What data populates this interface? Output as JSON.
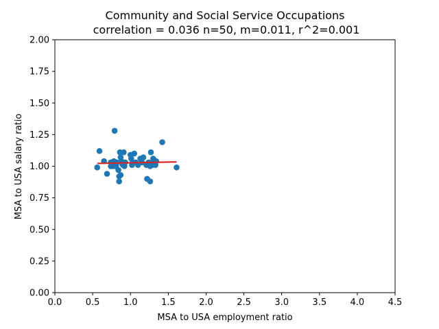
{
  "chart_data": {
    "type": "scatter",
    "title": "Community and Social Service Occupations",
    "subtitle": "correlation = 0.036 n=50, m=0.011, r^2=0.001",
    "xlabel": "MSA to USA employment ratio",
    "ylabel": "MSA to USA salary ratio",
    "xlim": [
      0.0,
      4.5
    ],
    "ylim": [
      0.0,
      2.0
    ],
    "x_ticks": [
      "0.0",
      "0.5",
      "1.0",
      "1.5",
      "2.0",
      "2.5",
      "3.0",
      "3.5",
      "4.0",
      "4.5"
    ],
    "y_ticks": [
      "0.00",
      "0.25",
      "0.50",
      "0.75",
      "1.00",
      "1.25",
      "1.50",
      "1.75",
      "2.00"
    ],
    "grid": false,
    "legend": "none",
    "colors": {
      "points": "#1f77b4",
      "fit_line": "#d62728"
    },
    "series": [
      {
        "points": [
          [
            0.56,
            0.99
          ],
          [
            0.59,
            1.12
          ],
          [
            0.65,
            1.04
          ],
          [
            0.69,
            0.94
          ],
          [
            0.74,
            1.03
          ],
          [
            0.74,
            1.0
          ],
          [
            0.76,
            1.02
          ],
          [
            0.77,
            1.0
          ],
          [
            0.78,
            1.04
          ],
          [
            0.79,
            1.28
          ],
          [
            0.8,
            1.03
          ],
          [
            0.81,
            1.0
          ],
          [
            0.82,
            1.03
          ],
          [
            0.84,
            0.97
          ],
          [
            0.85,
            0.88
          ],
          [
            0.85,
            0.92
          ],
          [
            0.86,
            1.11
          ],
          [
            0.87,
            1.07
          ],
          [
            0.87,
            0.93
          ],
          [
            0.88,
            1.04
          ],
          [
            0.89,
            1.02
          ],
          [
            0.9,
            1.01
          ],
          [
            0.91,
            1.11
          ],
          [
            0.92,
            1.0
          ],
          [
            0.93,
            1.03
          ],
          [
            1.0,
            1.09
          ],
          [
            1.01,
            1.06
          ],
          [
            1.02,
            1.01
          ],
          [
            1.03,
            1.03
          ],
          [
            1.05,
            1.1
          ],
          [
            1.07,
            1.03
          ],
          [
            1.1,
            1.01
          ],
          [
            1.13,
            1.06
          ],
          [
            1.15,
            1.03
          ],
          [
            1.17,
            1.07
          ],
          [
            1.21,
            1.01
          ],
          [
            1.22,
            0.9
          ],
          [
            1.24,
            1.03
          ],
          [
            1.26,
            1.0
          ],
          [
            1.26,
            0.88
          ],
          [
            1.27,
            1.11
          ],
          [
            1.28,
            1.02
          ],
          [
            1.29,
            1.01
          ],
          [
            1.3,
            1.06
          ],
          [
            1.31,
            1.03
          ],
          [
            1.32,
            1.02
          ],
          [
            1.33,
            1.01
          ],
          [
            1.34,
            1.04
          ],
          [
            1.42,
            1.19
          ],
          [
            1.61,
            0.99
          ]
        ]
      }
    ],
    "fit_line": {
      "x": [
        0.56,
        1.61
      ],
      "y": [
        1.022,
        1.034
      ]
    }
  }
}
